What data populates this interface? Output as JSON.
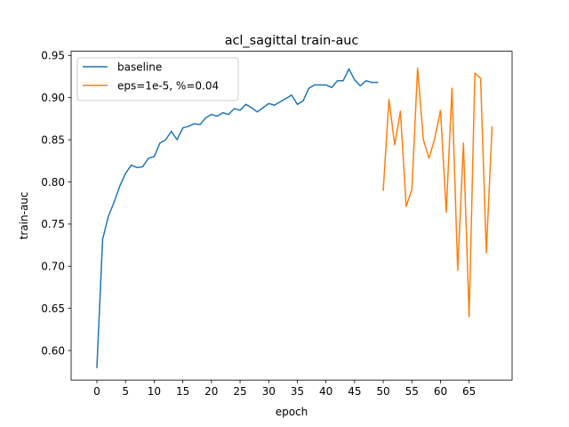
{
  "chart_data": {
    "type": "line",
    "title": "acl_sagittal train-auc",
    "xlabel": "epoch",
    "ylabel": "train-auc",
    "xlim": [
      -4.5,
      72.5
    ],
    "ylim": [
      0.565,
      0.955
    ],
    "xticks": [
      0,
      5,
      10,
      15,
      20,
      25,
      30,
      35,
      40,
      45,
      50,
      55,
      60,
      65
    ],
    "yticks": [
      0.6,
      0.65,
      0.7,
      0.75,
      0.8,
      0.85,
      0.9,
      0.95
    ],
    "grid": false,
    "legend_position": "upper-left",
    "series": [
      {
        "name": "baseline",
        "color": "#1f77b4",
        "x": [
          0,
          1,
          2,
          3,
          4,
          5,
          6,
          7,
          8,
          9,
          10,
          11,
          12,
          13,
          14,
          15,
          16,
          17,
          18,
          19,
          20,
          21,
          22,
          23,
          24,
          25,
          26,
          27,
          28,
          29,
          30,
          31,
          32,
          33,
          34,
          35,
          36,
          37,
          38,
          39,
          40,
          41,
          42,
          43,
          44,
          45,
          46,
          47,
          48,
          49
        ],
        "y": [
          0.58,
          0.732,
          0.759,
          0.776,
          0.795,
          0.81,
          0.82,
          0.817,
          0.818,
          0.828,
          0.83,
          0.846,
          0.85,
          0.86,
          0.85,
          0.864,
          0.866,
          0.869,
          0.868,
          0.876,
          0.88,
          0.878,
          0.882,
          0.88,
          0.887,
          0.885,
          0.892,
          0.888,
          0.883,
          0.888,
          0.893,
          0.891,
          0.895,
          0.899,
          0.903,
          0.892,
          0.896,
          0.911,
          0.915,
          0.915,
          0.915,
          0.912,
          0.92,
          0.92,
          0.934,
          0.921,
          0.914,
          0.92,
          0.918,
          0.918
        ]
      },
      {
        "name": "eps=1e-5, %=0.04",
        "color": "#ff7f0e",
        "x": [
          50,
          51,
          52,
          53,
          54,
          55,
          56,
          57,
          58,
          59,
          60,
          61,
          62,
          63,
          64,
          65,
          66,
          67,
          68,
          69
        ],
        "y": [
          0.79,
          0.898,
          0.844,
          0.884,
          0.771,
          0.791,
          0.935,
          0.85,
          0.828,
          0.852,
          0.885,
          0.764,
          0.911,
          0.695,
          0.846,
          0.64,
          0.929,
          0.923,
          0.716,
          0.865
        ]
      }
    ]
  }
}
